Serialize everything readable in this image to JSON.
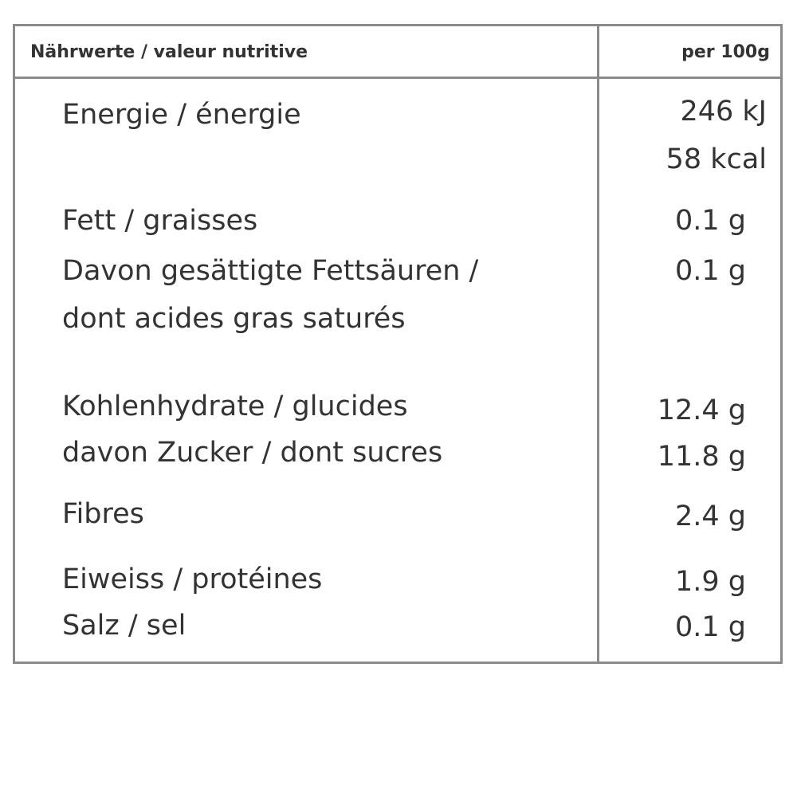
{
  "header": {
    "label": "Nährwerte / valeur nutritive",
    "unit": "per 100g"
  },
  "rows": [
    {
      "label": [
        "Energie / énergie"
      ],
      "values": [
        "246 kJ",
        "58 kcal"
      ]
    },
    {
      "label": [
        "Fett / graisses"
      ],
      "values": [
        "0.1 g"
      ]
    },
    {
      "label": [
        "Davon gesättigte Fettsäuren /",
        "dont acides gras saturés"
      ],
      "values": [
        "0.1 g"
      ]
    },
    {
      "label": [
        "Kohlenhydrate / glucides"
      ],
      "values": [
        "12.4 g"
      ]
    },
    {
      "label": [
        "davon Zucker / dont sucres"
      ],
      "values": [
        "11.8 g"
      ]
    },
    {
      "label": [
        "Fibres"
      ],
      "values": [
        "2.4 g"
      ]
    },
    {
      "label": [
        "Eiweiss / protéines"
      ],
      "values": [
        "1.9 g"
      ]
    },
    {
      "label": [
        "Salz / sel"
      ],
      "values": [
        "0.1 g"
      ]
    }
  ]
}
